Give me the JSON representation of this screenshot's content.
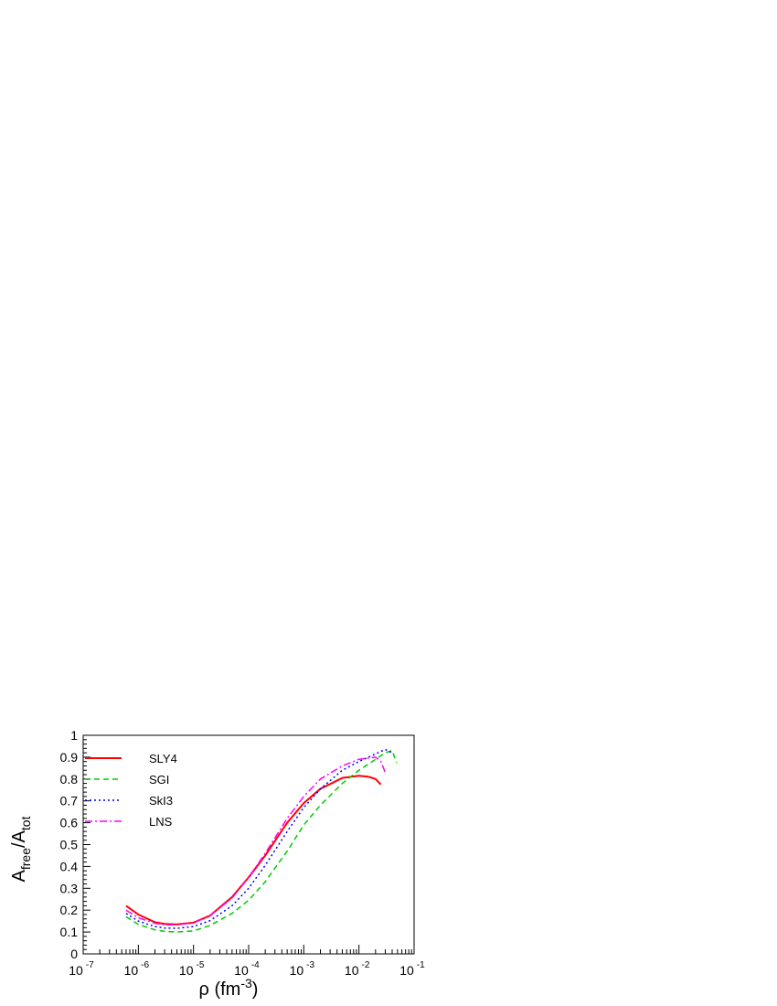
{
  "chart_data": {
    "type": "line",
    "xlabel": {
      "main": "ρ (fm",
      "sup": "-3",
      "close": ")"
    },
    "ylabel": {
      "main": "A",
      "sub1": "free",
      "slash": "/A",
      "sub2": "tot"
    },
    "xscale": "log",
    "xlim": [
      1e-07,
      0.1
    ],
    "ylim": [
      0,
      1
    ],
    "grid": false,
    "legend_position": "top-left",
    "x_ticks": [
      {
        "base": "10",
        "exp": "-7",
        "value": 1e-07
      },
      {
        "base": "10",
        "exp": "-6",
        "value": 1e-06
      },
      {
        "base": "10",
        "exp": "-5",
        "value": 1e-05
      },
      {
        "base": "10",
        "exp": "-4",
        "value": 0.0001
      },
      {
        "base": "10",
        "exp": "-3",
        "value": 0.001
      },
      {
        "base": "10",
        "exp": "-2",
        "value": 0.01
      },
      {
        "base": "10",
        "exp": "-1",
        "value": 0.1
      }
    ],
    "y_ticks": [
      "0",
      "0.1",
      "0.2",
      "0.3",
      "0.4",
      "0.5",
      "0.6",
      "0.7",
      "0.8",
      "0.9",
      "1"
    ],
    "series": [
      {
        "name": "SLY4",
        "color": "#ff0000",
        "dash": "",
        "width": 2,
        "x": [
          6e-07,
          1e-06,
          2e-06,
          3e-06,
          5e-06,
          1e-05,
          2e-05,
          5e-05,
          0.0001,
          0.0002,
          0.0005,
          0.001,
          0.002,
          0.005,
          0.01,
          0.015,
          0.02,
          0.025
        ],
        "y": [
          0.22,
          0.18,
          0.145,
          0.137,
          0.135,
          0.143,
          0.175,
          0.26,
          0.35,
          0.45,
          0.6,
          0.69,
          0.755,
          0.805,
          0.815,
          0.81,
          0.8,
          0.775
        ]
      },
      {
        "name": "SGI",
        "color": "#00cc00",
        "dash": "6,4",
        "width": 1.5,
        "x": [
          6e-07,
          1e-06,
          2e-06,
          3e-06,
          5e-06,
          1e-05,
          2e-05,
          5e-05,
          0.0001,
          0.0002,
          0.0005,
          0.001,
          0.002,
          0.005,
          0.01,
          0.02,
          0.03,
          0.04,
          0.048
        ],
        "y": [
          0.17,
          0.135,
          0.11,
          0.103,
          0.1,
          0.105,
          0.13,
          0.185,
          0.245,
          0.33,
          0.47,
          0.59,
          0.68,
          0.78,
          0.84,
          0.89,
          0.92,
          0.93,
          0.875
        ]
      },
      {
        "name": "SkI3",
        "color": "#0000ff",
        "dash": "2,3",
        "width": 1.5,
        "x": [
          6e-07,
          1e-06,
          2e-06,
          3e-06,
          5e-06,
          1e-05,
          2e-05,
          5e-05,
          0.0001,
          0.0002,
          0.0005,
          0.001,
          0.002,
          0.005,
          0.01,
          0.02,
          0.03,
          0.04
        ],
        "y": [
          0.185,
          0.15,
          0.125,
          0.118,
          0.117,
          0.125,
          0.152,
          0.22,
          0.3,
          0.405,
          0.56,
          0.67,
          0.755,
          0.84,
          0.88,
          0.915,
          0.935,
          0.92
        ]
      },
      {
        "name": "LNS",
        "color": "#ff00ff",
        "dash": "8,3,2,3",
        "width": 1.5,
        "x": [
          6e-07,
          1e-06,
          2e-06,
          3e-06,
          5e-06,
          1e-05,
          2e-05,
          5e-05,
          0.0001,
          0.0002,
          0.0005,
          0.001,
          0.002,
          0.005,
          0.01,
          0.02,
          0.025,
          0.03
        ],
        "y": [
          0.2,
          0.165,
          0.14,
          0.133,
          0.133,
          0.142,
          0.175,
          0.255,
          0.35,
          0.46,
          0.62,
          0.72,
          0.8,
          0.86,
          0.89,
          0.9,
          0.88,
          0.83
        ]
      }
    ]
  }
}
